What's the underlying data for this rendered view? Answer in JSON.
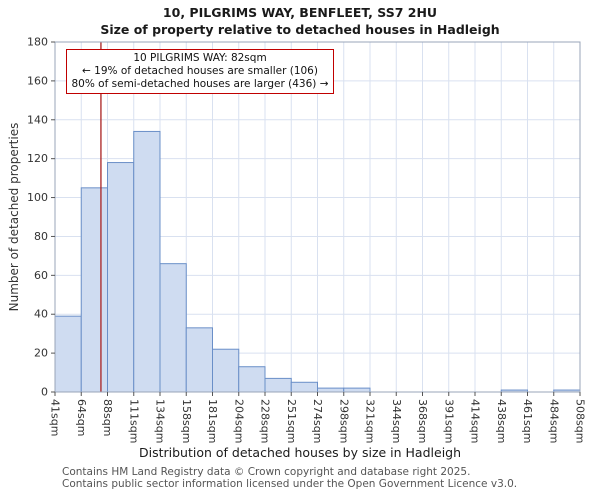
{
  "title": "10, PILGRIMS WAY, BENFLEET, SS7 2HU",
  "subtitle": "Size of property relative to detached houses in Hadleigh",
  "annotation": {
    "line1": "10 PILGRIMS WAY: 82sqm",
    "line2": "← 19% of detached houses are smaller (106)",
    "line3": "80% of semi-detached houses are larger (436) →"
  },
  "footer": {
    "line1": "Contains HM Land Registry data © Crown copyright and database right 2025.",
    "line2": "Contains public sector information licensed under the Open Government Licence v3.0."
  },
  "chart_data": {
    "type": "bar",
    "title": "10, PILGRIMS WAY, BENFLEET, SS7 2HU",
    "subtitle": "Size of property relative to detached houses in Hadleigh",
    "xlabel": "Distribution of detached houses by size in Hadleigh",
    "ylabel": "Number of detached properties",
    "bin_edges_sqm": [
      41,
      64,
      88,
      111,
      134,
      158,
      181,
      204,
      228,
      251,
      274,
      298,
      321,
      344,
      368,
      391,
      414,
      438,
      461,
      484,
      508
    ],
    "tick_labels": [
      "41sqm",
      "64sqm",
      "88sqm",
      "111sqm",
      "134sqm",
      "158sqm",
      "181sqm",
      "204sqm",
      "228sqm",
      "251sqm",
      "274sqm",
      "298sqm",
      "321sqm",
      "344sqm",
      "368sqm",
      "391sqm",
      "414sqm",
      "438sqm",
      "461sqm",
      "484sqm",
      "508sqm"
    ],
    "values": [
      39,
      105,
      118,
      134,
      66,
      33,
      22,
      13,
      7,
      5,
      2,
      2,
      0,
      0,
      0,
      0,
      0,
      1,
      0,
      1
    ],
    "ylim": [
      0,
      180
    ],
    "ytick_step": 20,
    "marker_value_sqm": 82,
    "grid": true,
    "legend": "none",
    "colors": {
      "bar_fill": "#cfdcf1",
      "bar_stroke": "#6a8fc8",
      "marker_line": "#aa2222",
      "annotation_border": "#c00000",
      "grid": "#d9e1f0",
      "axis_frame": "#98a4b8",
      "tick": "#555555"
    }
  }
}
